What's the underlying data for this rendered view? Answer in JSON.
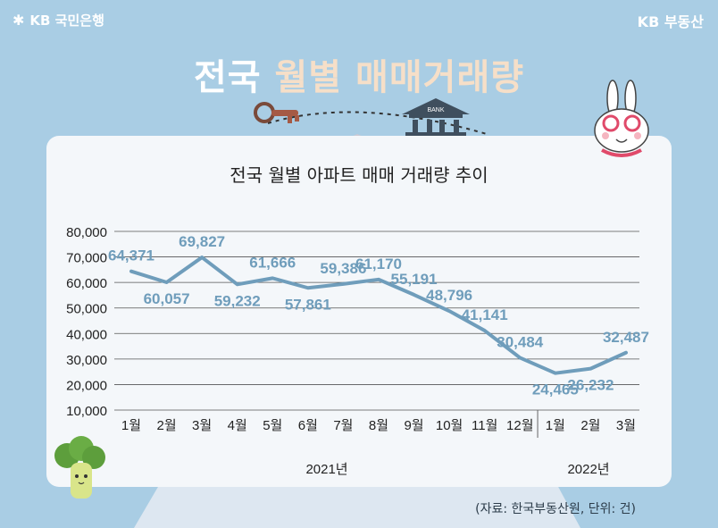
{
  "header": {
    "brand_left": "KB 국민은행",
    "brand_right": "KB 부동산",
    "title_main": "전국",
    "title_accent": "월별",
    "title_rest": "매매거래량"
  },
  "source": "(자료: 한국부동산원, 단위: 건)",
  "colors": {
    "background": "#a9cde4",
    "line": "#6f9dbb",
    "label": "#6f9dbb",
    "panel": "#f4f7fa"
  },
  "chart_data": {
    "type": "line",
    "title": "전국 월별 아파트 매매 거래량 추이",
    "categories": [
      "1월",
      "2월",
      "3월",
      "4월",
      "5월",
      "6월",
      "7월",
      "8월",
      "9월",
      "10월",
      "11월",
      "12월",
      "1월",
      "2월",
      "3월"
    ],
    "year_groups": [
      {
        "label": "2021년",
        "count": 12
      },
      {
        "label": "2022년",
        "count": 3
      }
    ],
    "values": [
      64371,
      60057,
      69827,
      59232,
      61666,
      57861,
      59386,
      61170,
      55191,
      48796,
      41141,
      30484,
      24465,
      26232,
      32487
    ],
    "data_labels": [
      "64,371",
      "60,057",
      "69,827",
      "59,232",
      "61,666",
      "57,861",
      "59,386",
      "61,170",
      "55,191",
      "48,796",
      "41,141",
      "30,484",
      "24,465",
      "26,232",
      "32,487"
    ],
    "y_ticks": [
      "10,000",
      "20,000",
      "30,000",
      "40,000",
      "50,000",
      "60,000",
      "70,000",
      "80,000"
    ],
    "ylim": [
      10000,
      80000
    ],
    "grid": true
  }
}
